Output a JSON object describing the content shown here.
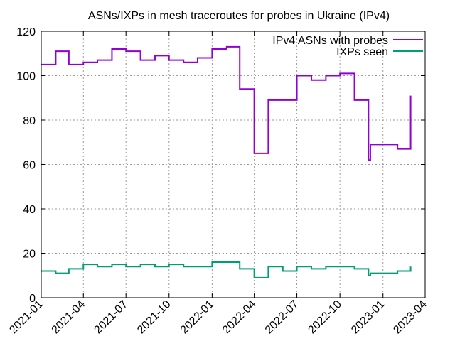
{
  "chart_data": {
    "type": "line",
    "title": "ASNs/IXPs in mesh traceroutes for probes in Ukraine (IPv4)",
    "xlabel": "",
    "ylabel": "",
    "x_axis": {
      "type": "date",
      "range": [
        "2021-01-01",
        "2023-04-01"
      ],
      "ticks": [
        "2021-01",
        "2021-04",
        "2021-07",
        "2021-10",
        "2022-01",
        "2022-04",
        "2022-07",
        "2022-10",
        "2023-01",
        "2023-04"
      ]
    },
    "y_axis": {
      "range": [
        0,
        120
      ],
      "ticks": [
        0,
        20,
        40,
        60,
        80,
        100,
        120
      ]
    },
    "grid": true,
    "legend_position": "top-right",
    "step_style": "post",
    "series": [
      {
        "name": "IPv4 ASNs with probes",
        "color": "#9400d3",
        "points": [
          [
            "2021-01-01",
            105
          ],
          [
            "2021-02-01",
            111
          ],
          [
            "2021-03-01",
            105
          ],
          [
            "2021-04-01",
            106
          ],
          [
            "2021-05-01",
            107
          ],
          [
            "2021-06-01",
            112
          ],
          [
            "2021-07-01",
            111
          ],
          [
            "2021-08-01",
            107
          ],
          [
            "2021-09-01",
            109
          ],
          [
            "2021-10-01",
            107
          ],
          [
            "2021-11-01",
            106
          ],
          [
            "2021-12-01",
            108
          ],
          [
            "2022-01-01",
            112
          ],
          [
            "2022-02-01",
            113
          ],
          [
            "2022-03-01",
            94
          ],
          [
            "2022-04-01",
            65
          ],
          [
            "2022-05-01",
            89
          ],
          [
            "2022-07-01",
            100
          ],
          [
            "2022-08-01",
            98
          ],
          [
            "2022-09-01",
            100
          ],
          [
            "2022-10-01",
            101
          ],
          [
            "2022-11-01",
            89
          ],
          [
            "2022-12-01",
            62
          ],
          [
            "2022-12-05",
            69
          ],
          [
            "2023-01-01",
            69
          ],
          [
            "2023-02-01",
            67
          ],
          [
            "2023-03-01",
            91
          ]
        ]
      },
      {
        "name": "IXPs seen",
        "color": "#009e73",
        "points": [
          [
            "2021-01-01",
            12
          ],
          [
            "2021-02-01",
            11
          ],
          [
            "2021-03-01",
            13
          ],
          [
            "2021-04-01",
            15
          ],
          [
            "2021-05-01",
            14
          ],
          [
            "2021-06-01",
            15
          ],
          [
            "2021-07-01",
            14
          ],
          [
            "2021-08-01",
            15
          ],
          [
            "2021-09-01",
            14
          ],
          [
            "2021-10-01",
            15
          ],
          [
            "2021-11-01",
            14
          ],
          [
            "2021-12-01",
            14
          ],
          [
            "2022-01-01",
            16
          ],
          [
            "2022-02-01",
            16
          ],
          [
            "2022-03-01",
            13
          ],
          [
            "2022-04-01",
            9
          ],
          [
            "2022-05-01",
            14
          ],
          [
            "2022-06-01",
            12
          ],
          [
            "2022-07-01",
            14
          ],
          [
            "2022-08-01",
            13
          ],
          [
            "2022-09-01",
            14
          ],
          [
            "2022-10-01",
            14
          ],
          [
            "2022-11-01",
            13
          ],
          [
            "2022-12-01",
            10
          ],
          [
            "2022-12-05",
            11
          ],
          [
            "2023-01-01",
            11
          ],
          [
            "2023-02-01",
            12
          ],
          [
            "2023-03-01",
            14
          ]
        ]
      }
    ]
  }
}
